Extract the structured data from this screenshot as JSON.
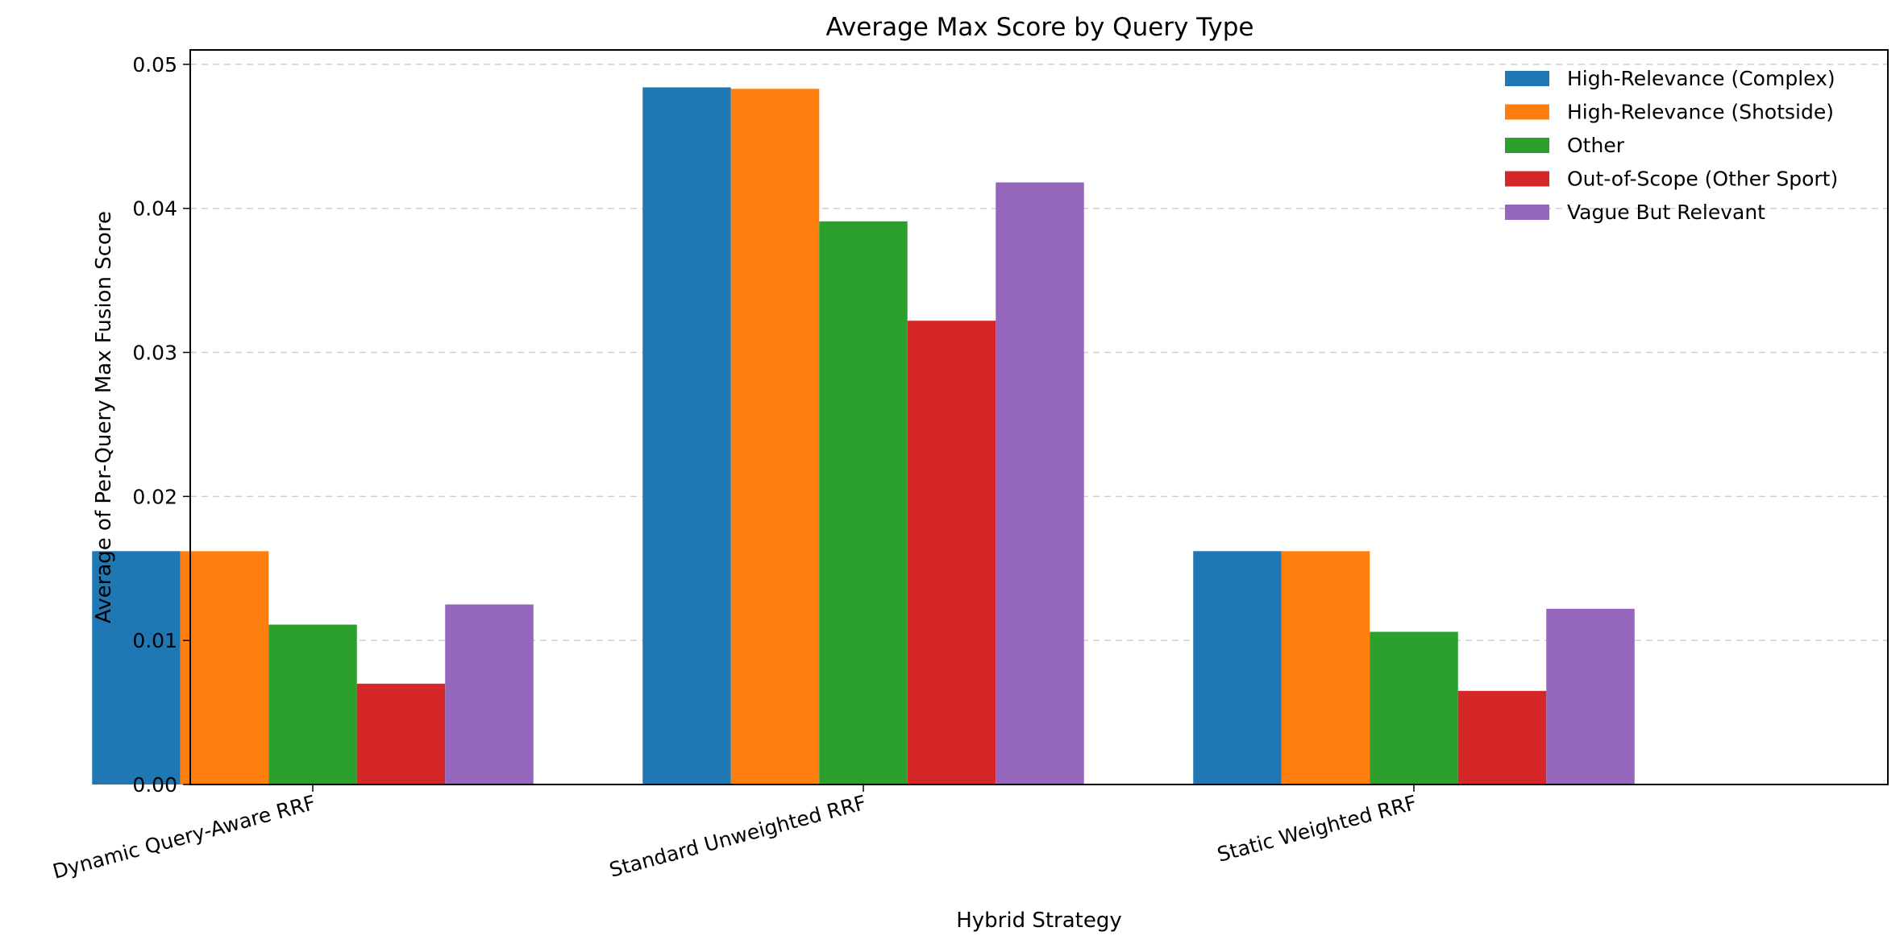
{
  "chart_data": {
    "type": "bar",
    "title": "Average Max Score by Query Type",
    "xlabel": "Hybrid Strategy",
    "ylabel": "Average of Per-Query Max Fusion Score",
    "categories": [
      "Dynamic Query-Aware RRF",
      "Standard Unweighted RRF",
      "Static Weighted RRF"
    ],
    "ylim": [
      0,
      0.051
    ],
    "yticks": [
      "0.00",
      "0.01",
      "0.02",
      "0.03",
      "0.04",
      "0.05"
    ],
    "ytick_values": [
      0,
      0.01,
      0.02,
      0.03,
      0.04,
      0.05
    ],
    "grid": "y-dashed",
    "legend_position": "top-right",
    "series": [
      {
        "name": "High-Relevance (Complex)",
        "color": "#1f77b4",
        "values": [
          0.0162,
          0.0484,
          0.0162
        ]
      },
      {
        "name": "High-Relevance (Shotside)",
        "color": "#ff7f0e",
        "values": [
          0.0162,
          0.0483,
          0.0162
        ]
      },
      {
        "name": "Other",
        "color": "#2ca02c",
        "values": [
          0.0111,
          0.0391,
          0.0106
        ]
      },
      {
        "name": "Out-of-Scope (Other Sport)",
        "color": "#d62728",
        "values": [
          0.007,
          0.0322,
          0.0065
        ]
      },
      {
        "name": "Vague But Relevant",
        "color": "#9467bd",
        "values": [
          0.0125,
          0.0418,
          0.0122
        ]
      }
    ]
  }
}
